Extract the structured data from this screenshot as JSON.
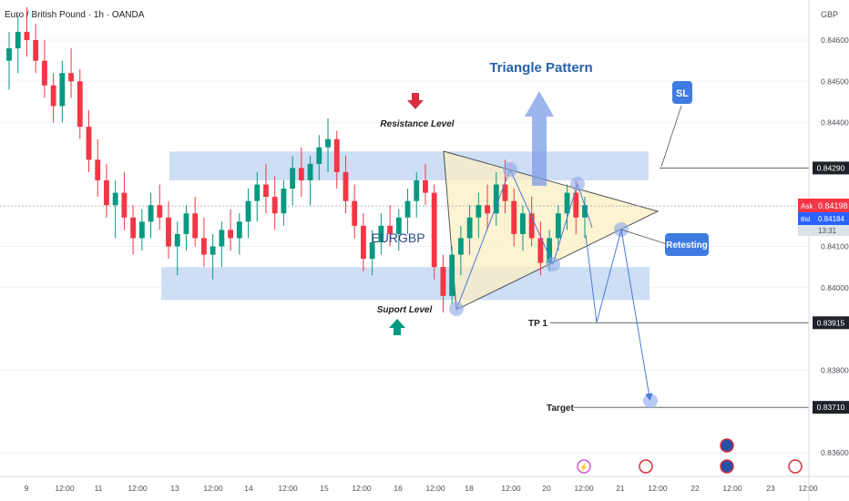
{
  "header": {
    "symbol_title": "Euro / British Pound · 1h · OANDA",
    "currency": "GBP"
  },
  "chart_data": {
    "type": "candlestick",
    "title": "Euro / British Pound · 1h · OANDA",
    "ylim": [
      0.8354,
      0.847
    ],
    "y_ticks": [
      0.846,
      0.845,
      0.844,
      0.841,
      0.84,
      0.838,
      0.836
    ],
    "y_tick_labels": [
      "0.84600",
      "0.84500",
      "0.84400",
      "0.84100",
      "0.84000",
      "0.83800",
      "0.83600"
    ],
    "x_tick_labels": [
      "9",
      "12:00",
      "11",
      "12:00",
      "13",
      "12:00",
      "14",
      "12:00",
      "15",
      "12:00",
      "16",
      "12:00",
      "18",
      "12:00",
      "20",
      "12:00",
      "21",
      "12:00",
      "22",
      "12:00",
      "23",
      "12:00"
    ],
    "price_labels": [
      {
        "name": "SL level",
        "value": 0.8429,
        "label": "0.84290"
      },
      {
        "name": "TP 1",
        "value": 0.83915,
        "label": "0.83915"
      },
      {
        "name": "Target",
        "value": 0.8371,
        "label": "0.83710"
      }
    ],
    "current_price": {
      "label": "Ask",
      "value": 0.84198,
      "text": "0.84198",
      "bid_label": "Bid",
      "bid_text": "0.84184",
      "countdown": "13:31"
    },
    "zones": [
      {
        "name": "Resistance Level",
        "low": 0.8426,
        "high": 0.8433
      },
      {
        "name": "Suport Level",
        "low": 0.8397,
        "high": 0.8405
      }
    ],
    "candles": [
      [
        0.8455,
        0.8462,
        0.8448,
        0.8458
      ],
      [
        0.8458,
        0.8466,
        0.8452,
        0.8462
      ],
      [
        0.8462,
        0.8468,
        0.8456,
        0.846
      ],
      [
        0.846,
        0.8464,
        0.8452,
        0.8455
      ],
      [
        0.8455,
        0.846,
        0.8446,
        0.8449
      ],
      [
        0.8449,
        0.8452,
        0.844,
        0.8444
      ],
      [
        0.8444,
        0.8455,
        0.844,
        0.8452
      ],
      [
        0.8452,
        0.8458,
        0.8446,
        0.845
      ],
      [
        0.845,
        0.8453,
        0.8436,
        0.8439
      ],
      [
        0.8439,
        0.8443,
        0.8428,
        0.8431
      ],
      [
        0.8431,
        0.8436,
        0.8422,
        0.8426
      ],
      [
        0.8426,
        0.843,
        0.8417,
        0.842
      ],
      [
        0.842,
        0.8426,
        0.8412,
        0.8423
      ],
      [
        0.8423,
        0.8428,
        0.8414,
        0.8417
      ],
      [
        0.8417,
        0.842,
        0.8408,
        0.8412
      ],
      [
        0.8412,
        0.8419,
        0.8409,
        0.8416
      ],
      [
        0.8416,
        0.8423,
        0.8412,
        0.842
      ],
      [
        0.842,
        0.8425,
        0.8414,
        0.8417
      ],
      [
        0.8417,
        0.8421,
        0.8407,
        0.841
      ],
      [
        0.841,
        0.8416,
        0.8403,
        0.8413
      ],
      [
        0.8413,
        0.842,
        0.8409,
        0.8418
      ],
      [
        0.8418,
        0.8422,
        0.841,
        0.8412
      ],
      [
        0.8412,
        0.8417,
        0.8405,
        0.8408
      ],
      [
        0.8408,
        0.8413,
        0.8402,
        0.841
      ],
      [
        0.841,
        0.8416,
        0.8405,
        0.8414
      ],
      [
        0.8414,
        0.8419,
        0.8409,
        0.8412
      ],
      [
        0.8412,
        0.8418,
        0.8408,
        0.8416
      ],
      [
        0.8416,
        0.8424,
        0.8412,
        0.8421
      ],
      [
        0.8421,
        0.8428,
        0.8416,
        0.8425
      ],
      [
        0.8425,
        0.843,
        0.8418,
        0.8422
      ],
      [
        0.8422,
        0.8427,
        0.8414,
        0.8418
      ],
      [
        0.8418,
        0.8426,
        0.8415,
        0.8424
      ],
      [
        0.8424,
        0.8432,
        0.842,
        0.8429
      ],
      [
        0.8429,
        0.8434,
        0.8422,
        0.8426
      ],
      [
        0.8426,
        0.8432,
        0.842,
        0.843
      ],
      [
        0.843,
        0.8437,
        0.8426,
        0.8434
      ],
      [
        0.8434,
        0.8441,
        0.8428,
        0.8436
      ],
      [
        0.8436,
        0.8438,
        0.8424,
        0.8428
      ],
      [
        0.8428,
        0.8432,
        0.8418,
        0.8421
      ],
      [
        0.8421,
        0.8425,
        0.8412,
        0.8415
      ],
      [
        0.8415,
        0.8418,
        0.8404,
        0.8407
      ],
      [
        0.8407,
        0.8414,
        0.8403,
        0.8411
      ],
      [
        0.8411,
        0.8418,
        0.8408,
        0.8415
      ],
      [
        0.8415,
        0.842,
        0.841,
        0.8413
      ],
      [
        0.8413,
        0.8419,
        0.8409,
        0.8417
      ],
      [
        0.8417,
        0.8424,
        0.8413,
        0.8421
      ],
      [
        0.8421,
        0.8428,
        0.8417,
        0.8426
      ],
      [
        0.8426,
        0.843,
        0.842,
        0.8423
      ],
      [
        0.8423,
        0.8425,
        0.8402,
        0.8405
      ],
      [
        0.8405,
        0.8408,
        0.8394,
        0.8398
      ],
      [
        0.8398,
        0.841,
        0.8396,
        0.8408
      ],
      [
        0.8408,
        0.8415,
        0.8403,
        0.8412
      ],
      [
        0.8412,
        0.842,
        0.8408,
        0.8417
      ],
      [
        0.8417,
        0.8423,
        0.8412,
        0.842
      ],
      [
        0.842,
        0.8425,
        0.8414,
        0.8418
      ],
      [
        0.8418,
        0.8428,
        0.8415,
        0.8425
      ],
      [
        0.8425,
        0.8431,
        0.8418,
        0.8421
      ],
      [
        0.8421,
        0.8424,
        0.841,
        0.8413
      ],
      [
        0.8413,
        0.842,
        0.8409,
        0.8418
      ],
      [
        0.8418,
        0.8422,
        0.841,
        0.8412
      ],
      [
        0.8412,
        0.8416,
        0.8403,
        0.8406
      ],
      [
        0.8406,
        0.8414,
        0.8404,
        0.8412
      ],
      [
        0.8412,
        0.842,
        0.8409,
        0.8418
      ],
      [
        0.8418,
        0.8425,
        0.8414,
        0.8423
      ],
      [
        0.8423,
        0.8426,
        0.8413,
        0.8417
      ],
      [
        0.8417,
        0.8422,
        0.8412,
        0.842
      ]
    ]
  },
  "annotations": {
    "resistance": "Resistance Level",
    "support": "Suport Level",
    "symbol": "EURGBP",
    "pattern": "Triangle Pattern",
    "sl": "SL",
    "retesting": "Retesting",
    "tp1": "TP 1",
    "target": "Target"
  },
  "colors": {
    "up": "#089981",
    "down": "#f23645",
    "zone": "#bcd3f2",
    "triangle": "#fbefc4",
    "pattern_text": "#2962a8",
    "callout": "#3f7be0",
    "path": "#4a78d6"
  }
}
